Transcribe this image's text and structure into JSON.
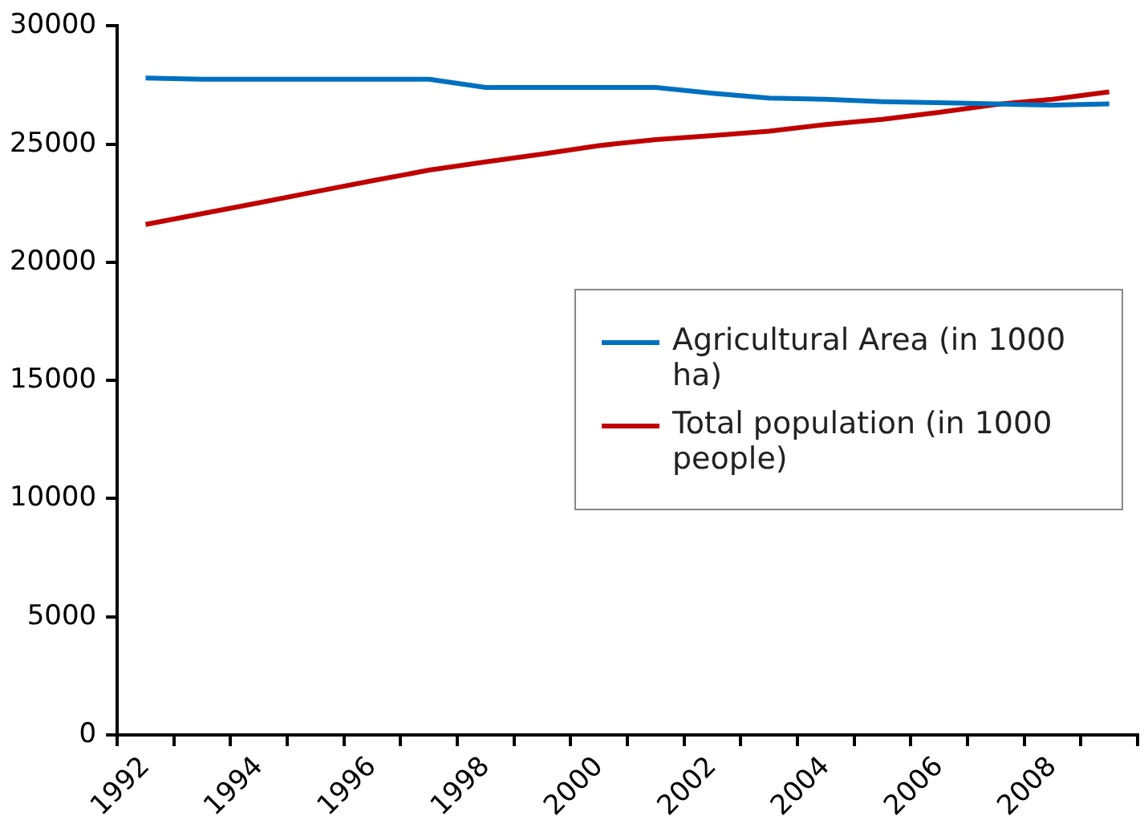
{
  "chart_data": {
    "type": "line",
    "categories": [
      "1992",
      null,
      "1994",
      null,
      "1996",
      null,
      "1998",
      null,
      "2000",
      null,
      "2002",
      null,
      "2004",
      null,
      "2006",
      null,
      "2008",
      null
    ],
    "series": [
      {
        "name": "Agricultural Area (in 1000 ha)",
        "color": "#0070c0",
        "values": [
          27800,
          27750,
          27750,
          27750,
          27750,
          27750,
          27400,
          27400,
          27400,
          27400,
          27150,
          26950,
          26900,
          26800,
          26750,
          26700,
          26650,
          26700
        ]
      },
      {
        "name": "Total population (in 1000 people)",
        "color": "#c00000",
        "values": [
          21600,
          22060,
          22520,
          22990,
          23450,
          23900,
          24250,
          24580,
          24940,
          25190,
          25360,
          25550,
          25830,
          26050,
          26350,
          26680,
          26900,
          27210
        ]
      }
    ],
    "ylim": [
      0,
      30000
    ],
    "yticks": [
      0,
      5000,
      10000,
      15000,
      20000,
      25000,
      30000
    ],
    "grid": false,
    "legend": "right",
    "marker": "none",
    "line_style": "solid"
  }
}
